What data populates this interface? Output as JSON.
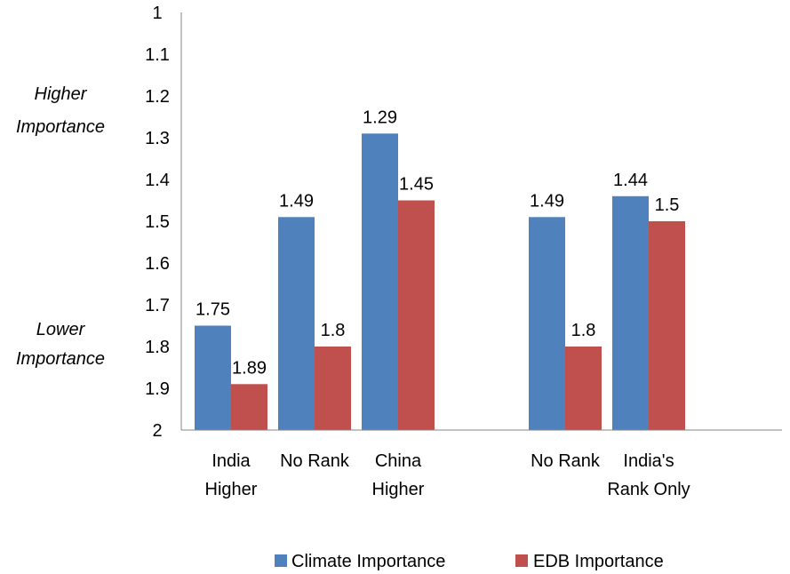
{
  "chart_data": {
    "type": "bar",
    "categories": [
      [
        "India",
        "Higher"
      ],
      [
        "No Rank"
      ],
      [
        "China",
        "Higher"
      ],
      [
        "No Rank"
      ],
      [
        "India's",
        "Rank Only"
      ]
    ],
    "group_gap_after_index": 2,
    "series": [
      {
        "name": "Climate Importance",
        "color": "#4f81bd",
        "values": [
          1.75,
          1.49,
          1.29,
          1.49,
          1.44
        ],
        "labels": [
          "1.75",
          "1.49",
          "1.29",
          "1.49",
          "1.44"
        ]
      },
      {
        "name": "EDB Importance",
        "color": "#c0504d",
        "values": [
          1.89,
          1.8,
          1.45,
          1.8,
          1.5
        ],
        "labels": [
          "1.89",
          "1.8",
          "1.45",
          "1.8",
          "1.5"
        ]
      }
    ],
    "ylim": [
      1,
      2
    ],
    "y_reversed": true,
    "yticks": [
      "1",
      "1.1",
      "1.2",
      "1.3",
      "1.4",
      "1.5",
      "1.6",
      "1.7",
      "1.8",
      "1.9",
      "2"
    ],
    "y_annotations": {
      "top": [
        "Higher",
        "Importance"
      ],
      "bottom": [
        "Lower",
        "Importance"
      ]
    },
    "grid": false,
    "legend_position": "bottom"
  }
}
